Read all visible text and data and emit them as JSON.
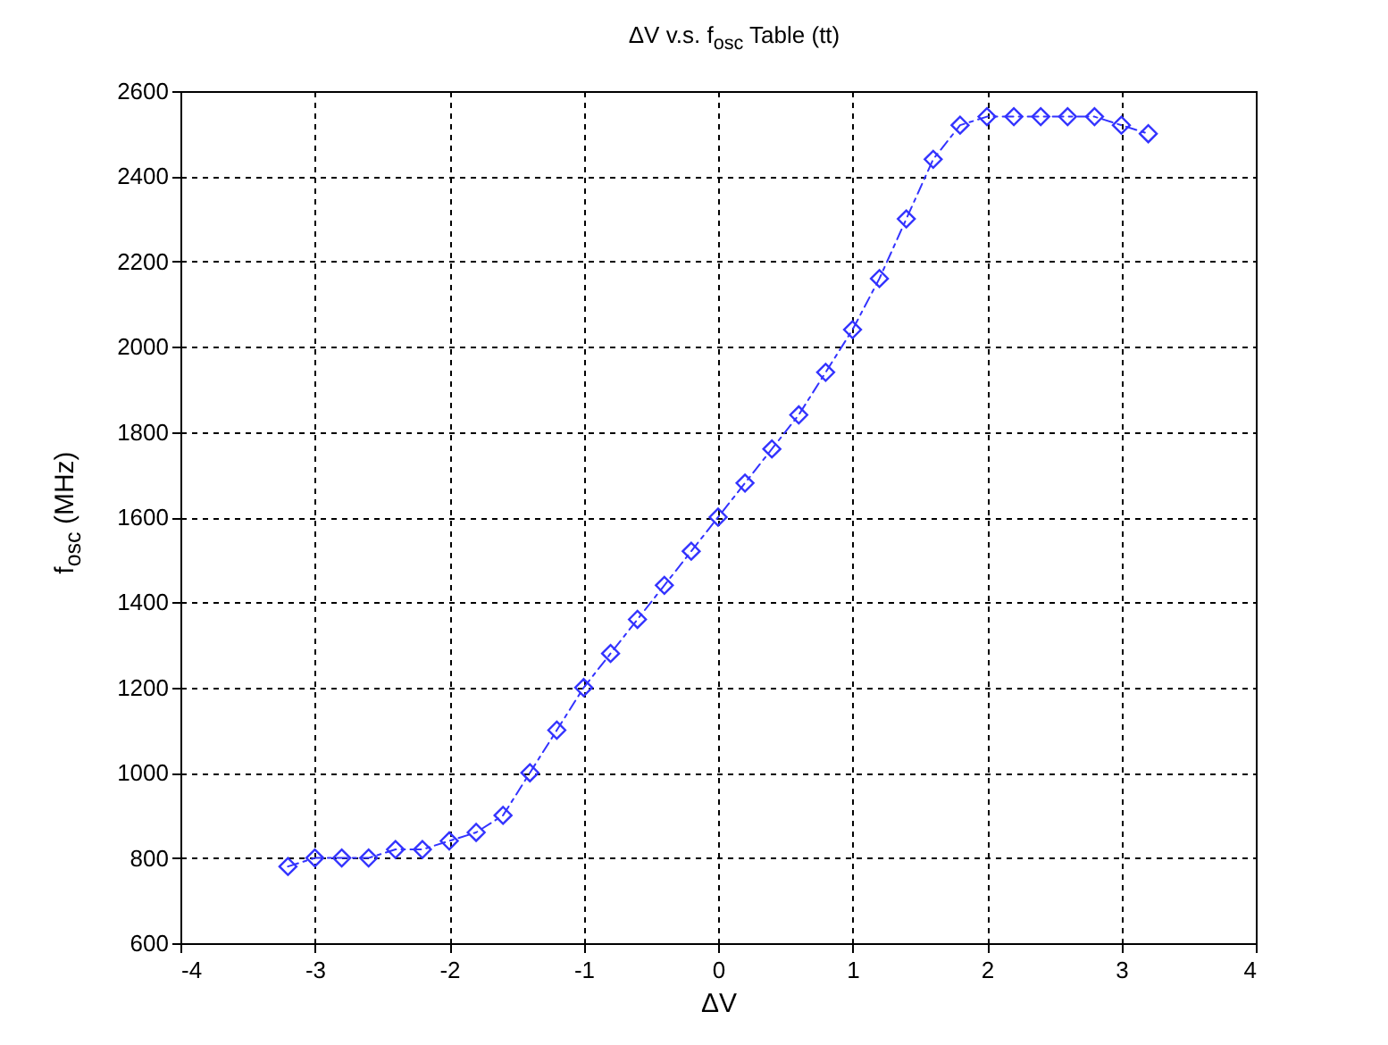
{
  "chart_data": {
    "type": "line",
    "title": "ΔV v.s. f$_{osc}$ Table (tt)",
    "xlabel": "ΔV",
    "ylabel": "f$_{osc}$ (MHz)",
    "x": [
      -3.2,
      -3.0,
      -2.8,
      -2.6,
      -2.4,
      -2.2,
      -2.0,
      -1.8,
      -1.6,
      -1.4,
      -1.2,
      -1.0,
      -0.8,
      -0.6,
      -0.4,
      -0.2,
      0,
      0.2,
      0.4,
      0.6,
      0.8,
      1.0,
      1.2,
      1.4,
      1.6,
      1.8,
      2.0,
      2.2,
      2.4,
      2.6,
      2.8,
      3.0,
      3.2
    ],
    "series": [
      {
        "color": "#3333ff",
        "values": [
          780,
          800,
          800,
          800,
          820,
          820,
          840,
          860,
          900,
          1000,
          1100,
          1200,
          1280,
          1360,
          1440,
          1520,
          1600,
          1680,
          1760,
          1840,
          1940,
          2040,
          2160,
          2300,
          2440,
          2520,
          2540,
          2540,
          2540,
          2540,
          2540,
          2520,
          2500
        ]
      }
    ],
    "xlim": [
      -4,
      4
    ],
    "xticks": [
      -4,
      -3,
      -2,
      -1,
      0,
      1,
      2,
      3,
      4
    ],
    "ylim": [
      600,
      2600
    ],
    "yticks": [
      600,
      800,
      1000,
      1200,
      1400,
      1600,
      1800,
      2000,
      2200,
      2400,
      2600
    ],
    "grid": true,
    "marker": "diamond",
    "line_style": "dashed"
  }
}
